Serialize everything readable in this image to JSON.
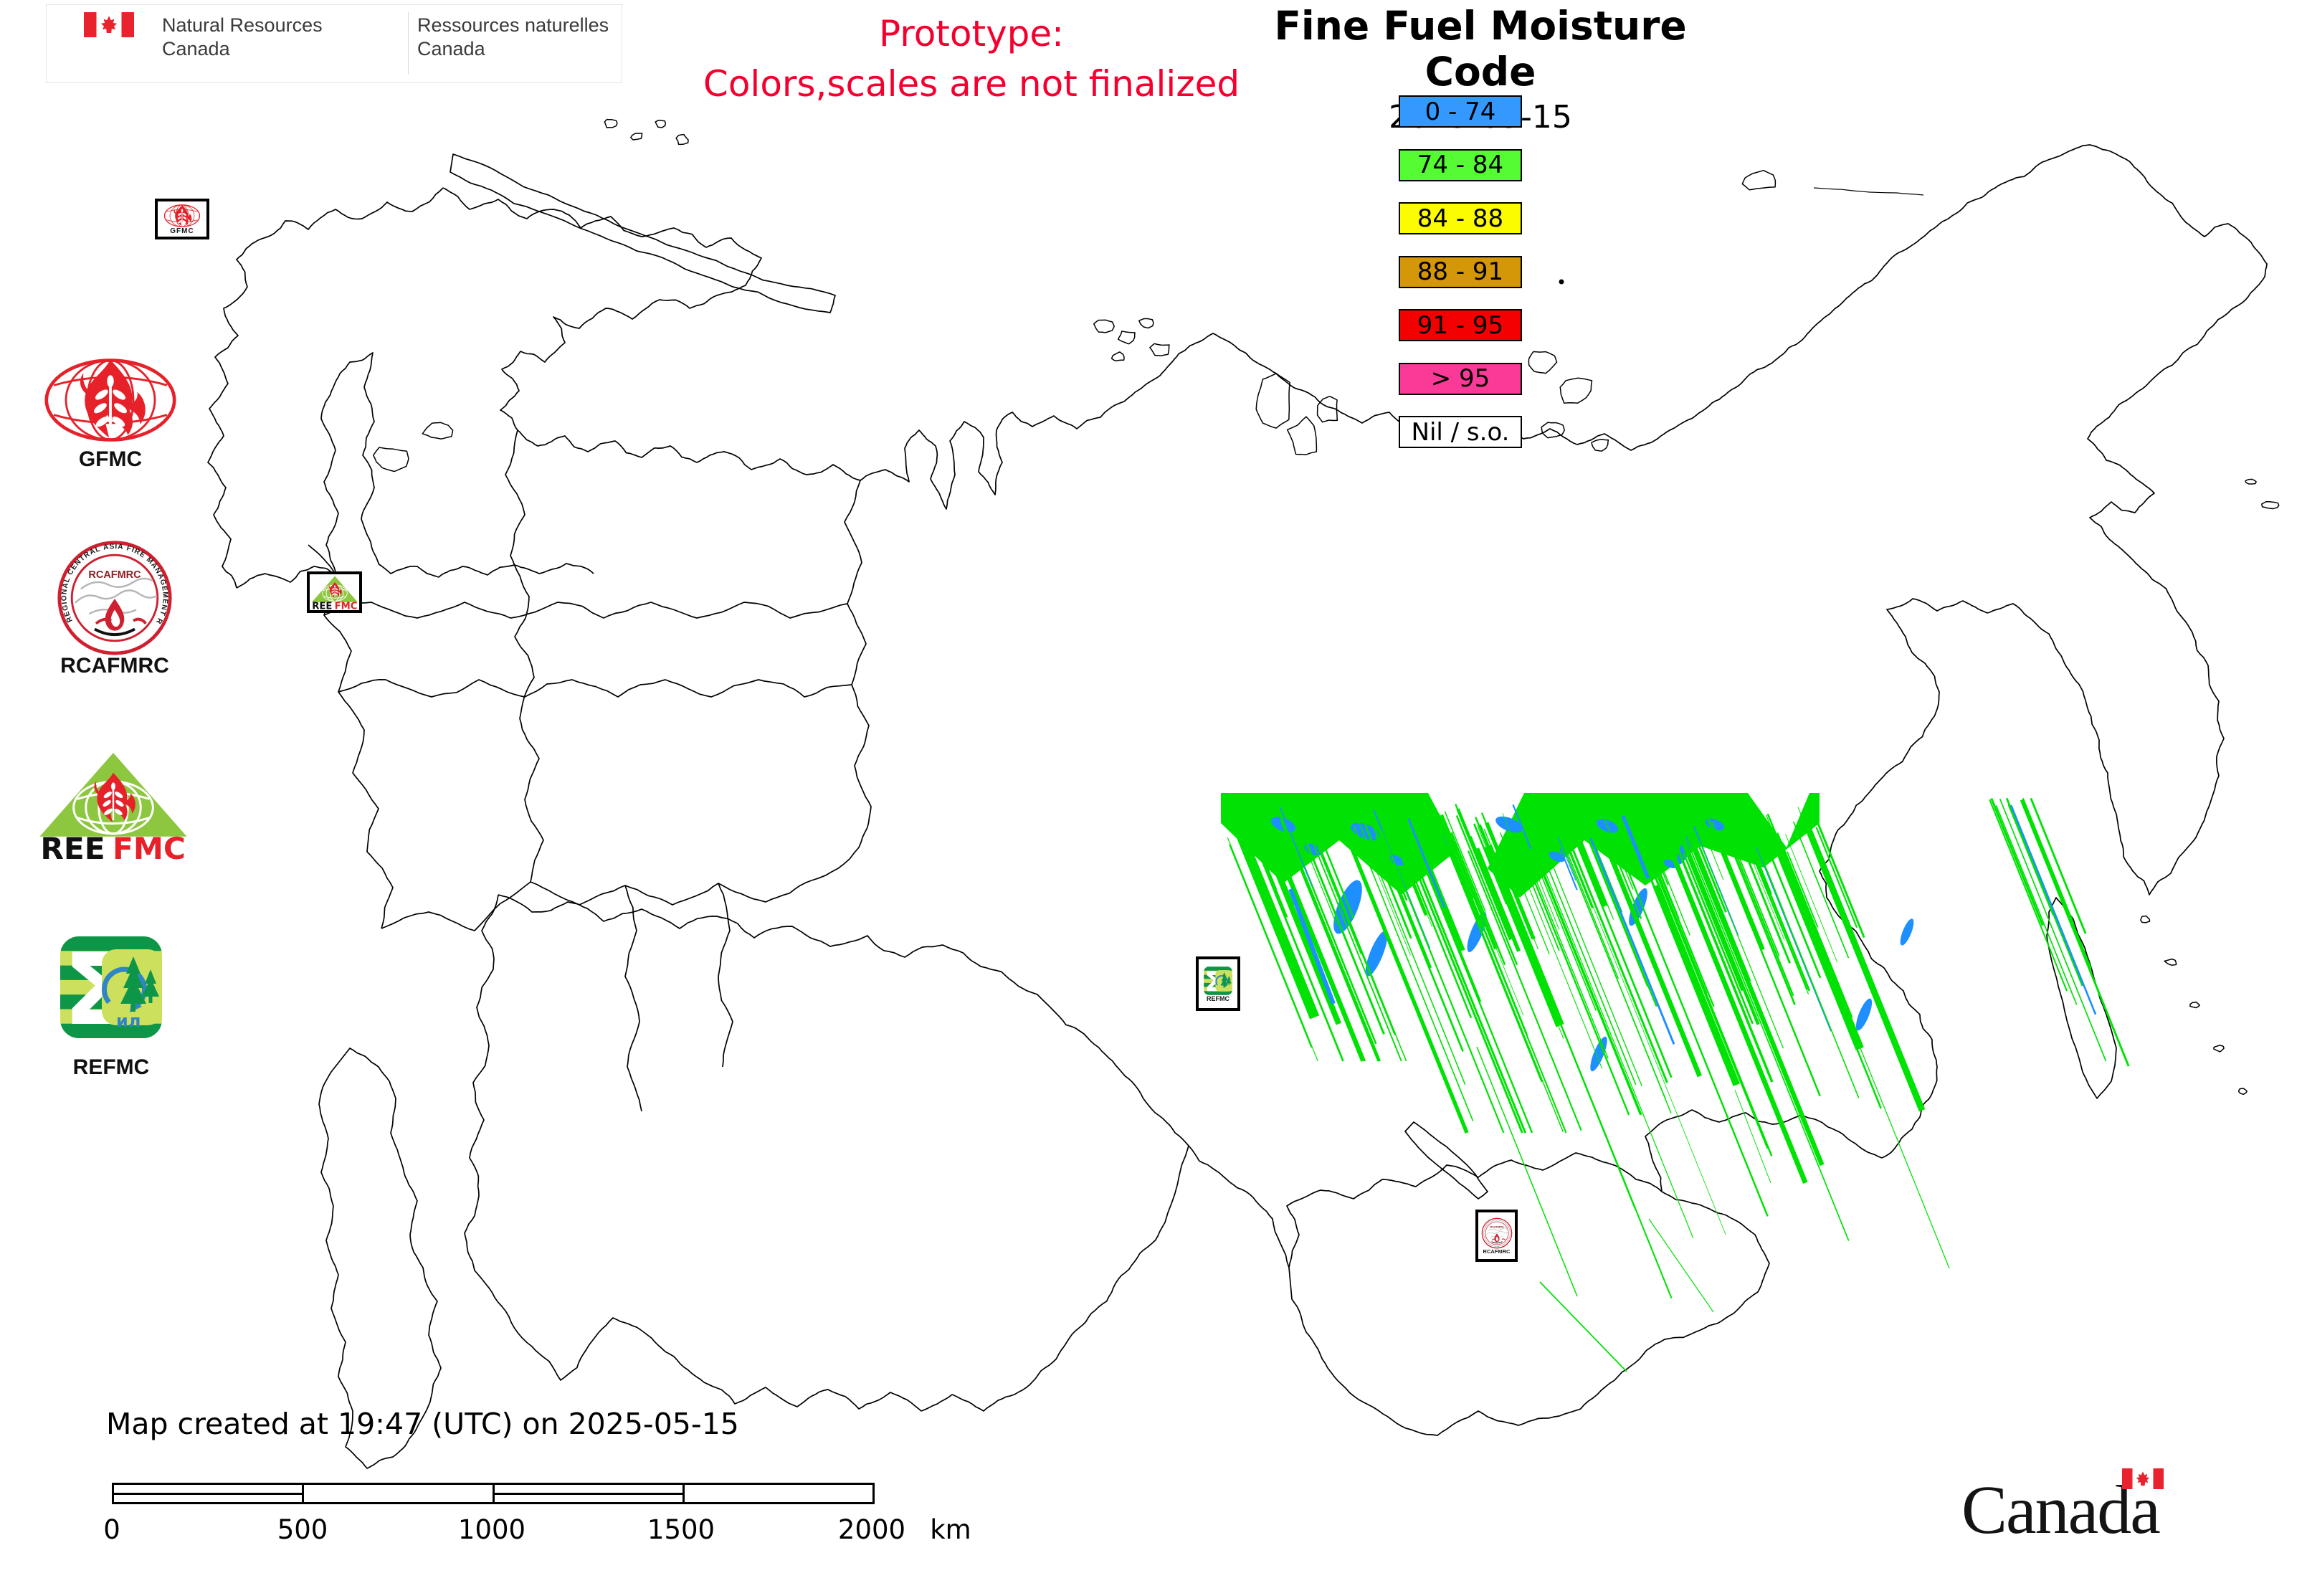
{
  "header": {
    "nrcan": {
      "en_line1": "Natural Resources",
      "en_line2": "Canada",
      "fr_line1": "Ressources naturelles",
      "fr_line2": "Canada"
    },
    "warning": {
      "line1": "Prototype:",
      "line2": "Colors,scales are not finalized"
    },
    "title": "Fine Fuel Moisture Code",
    "date": "2025-05-15"
  },
  "legend": {
    "items": [
      {
        "label": "0 - 74",
        "color": "#3399ff"
      },
      {
        "label": "74 - 84",
        "color": "#55fb33"
      },
      {
        "label": "84 - 88",
        "color": "#fcfc00"
      },
      {
        "label": "88 - 91",
        "color": "#d49708"
      },
      {
        "label": "91 - 95",
        "color": "#f40000"
      },
      {
        "label": "> 95",
        "color": "#fb3a97"
      },
      {
        "label": "Nil / s.o.",
        "color": "#ffffff"
      }
    ]
  },
  "sidebar": {
    "gfmc": {
      "label": "GFMC"
    },
    "rcafmrc": {
      "label": "RCAFMRC",
      "seal": "RCAFMRC",
      "ring": "REGIONAL CENTRAL ASIA FIRE MANAGEMENT RESOURCE CENTER"
    },
    "reefmc": {
      "part1": "REE",
      "part2": "FMC"
    },
    "refmc": {
      "label": "REFMC",
      "mono": "ил"
    }
  },
  "map": {
    "markers": [
      {
        "id": "gfmc",
        "label": "GFMC"
      },
      {
        "id": "reefmc",
        "label1": "REE",
        "label2": "FMC"
      },
      {
        "id": "refmc",
        "label": "REFMC"
      },
      {
        "id": "rcafmrc",
        "label": "RCAFMRC"
      }
    ]
  },
  "footer": {
    "created_text": "Map created at 19:47 (UTC) on 2025-05-15",
    "scale": {
      "ticks": [
        "0",
        "500",
        "1000",
        "1500",
        "2000"
      ],
      "unit": "km"
    }
  },
  "canada_wordmark": "Canada",
  "colors": {
    "prototype_red": "#f4002e",
    "outline": "#000000",
    "swath_green": "#00e204",
    "swath_blue": "#1e8fff",
    "gfmc_red": "#e62129",
    "rcafmrc_red": "#cf2030",
    "rcafmrc_dark": "#8b1f24",
    "reefmc_green": "#8dc63f",
    "refmc_dark_green": "#0d9648",
    "refmc_light_green": "#cde05e",
    "refmc_blue": "#2f86c5",
    "flag_red": "#e8232d"
  }
}
